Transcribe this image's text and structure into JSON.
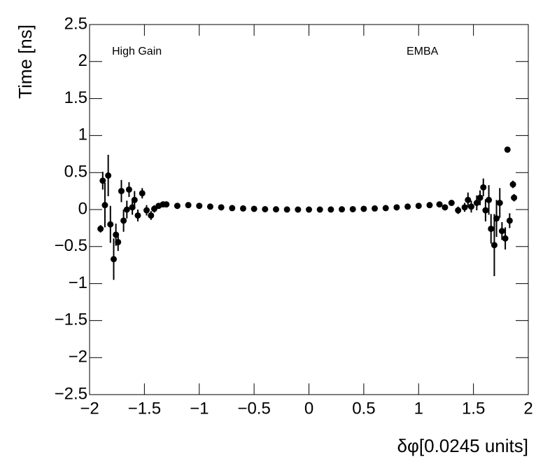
{
  "chart_data": {
    "type": "scatter",
    "xlabel": "δφ[0.0245 units]",
    "ylabel": "Time [ns]",
    "annotations": [
      "High Gain",
      "EMBA"
    ],
    "color": "#000000",
    "x": [
      -1.9,
      -1.88,
      -1.86,
      -1.83,
      -1.81,
      -1.78,
      -1.76,
      -1.74,
      -1.71,
      -1.69,
      -1.66,
      -1.64,
      -1.61,
      -1.59,
      -1.56,
      -1.52,
      -1.48,
      -1.44,
      -1.41,
      -1.37,
      -1.33,
      -1.3,
      -1.2,
      -1.1,
      -1.0,
      -0.9,
      -0.8,
      -0.7,
      -0.6,
      -0.5,
      -0.4,
      -0.3,
      -0.2,
      -0.1,
      0,
      0.1,
      0.2,
      0.3,
      0.4,
      0.5,
      0.6,
      0.7,
      0.8,
      0.9,
      1.0,
      1.1,
      1.19,
      1.24,
      1.3,
      1.36,
      1.42,
      1.45,
      1.48,
      1.53,
      1.56,
      1.59,
      1.61,
      1.64,
      1.66,
      1.69,
      1.71,
      1.74,
      1.76,
      1.79,
      1.81,
      1.83,
      1.86,
      1.87
    ],
    "values": [
      -0.26,
      0.39,
      0.06,
      0.46,
      -0.2,
      -0.67,
      -0.34,
      -0.44,
      0.25,
      -0.15,
      0,
      0.27,
      0.03,
      0.13,
      -0.08,
      0.22,
      -0.01,
      -0.08,
      0.01,
      0.05,
      0.07,
      0.07,
      0.05,
      0.06,
      0.05,
      0.04,
      0.03,
      0.02,
      0.015,
      0.01,
      0.005,
      0.003,
      0.001,
      0,
      0,
      0,
      0.001,
      0.003,
      0.005,
      0.01,
      0.015,
      0.02,
      0.03,
      0.04,
      0.05,
      0.06,
      0.07,
      0.03,
      0.09,
      -0.01,
      0.03,
      0.13,
      0.04,
      0.09,
      0.16,
      0.3,
      -0.01,
      0.13,
      -0.26,
      -0.48,
      -0.12,
      0.09,
      -0.29,
      -0.39,
      0.81,
      -0.15,
      0.34,
      0.16
    ],
    "errors": [
      0.05,
      0.12,
      0.3,
      0.28,
      0.25,
      0.28,
      0.15,
      0.12,
      0.15,
      0.15,
      0.12,
      0.1,
      0.1,
      0.12,
      0.08,
      0.07,
      0.07,
      0.06,
      0.05,
      0.04,
      0.03,
      0.02,
      0.02,
      0.01,
      0.01,
      0.01,
      0.01,
      0.01,
      0.01,
      0.005,
      0.005,
      0.005,
      0.005,
      0.005,
      0.005,
      0.005,
      0.005,
      0.005,
      0.005,
      0.005,
      0.01,
      0.01,
      0.01,
      0.01,
      0.01,
      0.01,
      0.02,
      0.03,
      0.03,
      0.05,
      0.06,
      0.1,
      0.08,
      0.1,
      0.1,
      0.12,
      0.15,
      0.2,
      0.2,
      0.42,
      0.25,
      0.2,
      0.12,
      0.15,
      0.03,
      0.1,
      0.05,
      0.05
    ],
    "xlim": [
      -2,
      2
    ],
    "xticks": [
      {
        "value": -2,
        "label": "−2"
      },
      {
        "value": -1.5,
        "label": "−1.5"
      },
      {
        "value": -1,
        "label": "−1"
      },
      {
        "value": -0.5,
        "label": "−0.5"
      },
      0,
      0.5,
      1,
      1.5,
      2
    ],
    "ylim": [
      -2.5,
      2.5
    ],
    "yticks": [
      {
        "value": -2.5,
        "label": "−2.5"
      },
      {
        "value": -2,
        "label": "−2"
      },
      {
        "value": -1.5,
        "label": "−1.5"
      },
      {
        "value": -1,
        "label": "−1"
      },
      {
        "value": -0.5,
        "label": "−0.5"
      },
      0,
      0.5,
      1,
      1.5,
      2,
      2.5
    ]
  }
}
